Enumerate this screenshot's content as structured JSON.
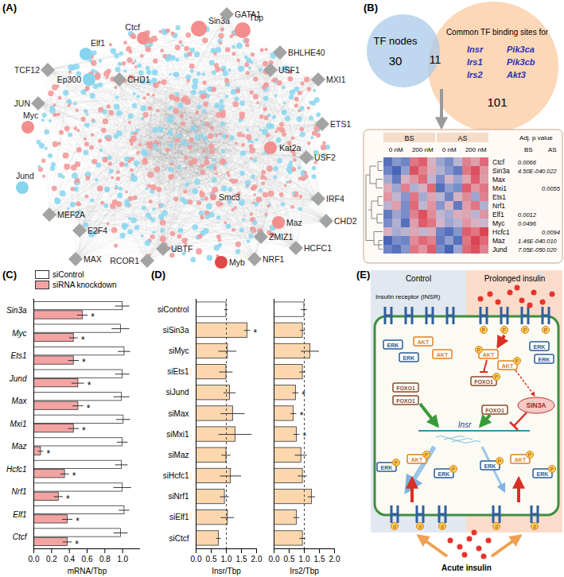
{
  "figure_labels": [
    "(A)",
    "(B)",
    "(C)",
    "(D)",
    "(E)"
  ],
  "panel_a": {
    "nodes": [
      {
        "label": "Sin3a",
        "shape": "circle",
        "color": "#f28e8e"
      },
      {
        "label": "Ctcf",
        "shape": "circle",
        "color": "#f28e8e"
      },
      {
        "label": "Tbp",
        "shape": "circle",
        "color": "#f28e8e"
      },
      {
        "label": "GATA1",
        "shape": "diamond",
        "color": "#a3a3a3"
      },
      {
        "label": "Elf1",
        "shape": "circle",
        "color": "#86d4ee"
      },
      {
        "label": "TCF12",
        "shape": "diamond",
        "color": "#a3a3a3"
      },
      {
        "label": "Ep300",
        "shape": "circle",
        "color": "#86d4ee"
      },
      {
        "label": "CHD1",
        "shape": "diamond",
        "color": "#a3a3a3"
      },
      {
        "label": "BHLHE40",
        "shape": "diamond",
        "color": "#a3a3a3"
      },
      {
        "label": "USF1",
        "shape": "diamond",
        "color": "#a3a3a3"
      },
      {
        "label": "MXI1",
        "shape": "diamond",
        "color": "#a3a3a3"
      },
      {
        "label": "JUN",
        "shape": "diamond",
        "color": "#a3a3a3"
      },
      {
        "label": "Myc",
        "shape": "circle",
        "color": "#f28e8e"
      },
      {
        "label": "ETS1",
        "shape": "diamond",
        "color": "#a3a3a3"
      },
      {
        "label": "USF2",
        "shape": "diamond",
        "color": "#a3a3a3"
      },
      {
        "label": "Kat2a",
        "shape": "circle",
        "color": "#f28e8e"
      },
      {
        "label": "Jund",
        "shape": "circle",
        "color": "#86d4ee"
      },
      {
        "label": "IRF4",
        "shape": "diamond",
        "color": "#a3a3a3"
      },
      {
        "label": "CHD2",
        "shape": "diamond",
        "color": "#a3a3a3"
      },
      {
        "label": "MEF2A",
        "shape": "diamond",
        "color": "#a3a3a3"
      },
      {
        "label": "E2F4",
        "shape": "diamond",
        "color": "#a3a3a3"
      },
      {
        "label": "Maz",
        "shape": "circle",
        "color": "#f28e8e"
      },
      {
        "label": "ZMIZ1",
        "shape": "diamond",
        "color": "#a3a3a3"
      },
      {
        "label": "MAX",
        "shape": "diamond",
        "color": "#a3a3a3"
      },
      {
        "label": "UBTF",
        "shape": "diamond",
        "color": "#a3a3a3"
      },
      {
        "label": "RCOR1",
        "shape": "diamond",
        "color": "#a3a3a3"
      },
      {
        "label": "Smc3",
        "shape": "circle",
        "color": "#f28e8e"
      },
      {
        "label": "NRF1",
        "shape": "diamond",
        "color": "#a3a3a3"
      },
      {
        "label": "HCFC1",
        "shape": "diamond",
        "color": "#a3a3a3"
      },
      {
        "label": "Myb",
        "shape": "circle",
        "color": "#e04848"
      }
    ]
  },
  "panel_b": {
    "venn": {
      "left_label": "TF nodes",
      "left_only": 30,
      "overlap": 11,
      "right_label": "Common TF binding sites for",
      "right_genes": [
        "Insr",
        "Pik3ca",
        "Irs1",
        "Pik3cb",
        "Irs2",
        "Akt3"
      ],
      "right_only": 101
    },
    "heatmap": {
      "groups": [
        "BS",
        "AS"
      ],
      "doses": [
        "0 nM",
        "200 nM"
      ],
      "rows": [
        "Ctcf",
        "Sin3a",
        "Max",
        "Mxi1",
        "Ets1",
        "Nrf1",
        "Elf1",
        "Myc",
        "Hcfc1",
        "Maz",
        "Jund"
      ],
      "zlim": [
        -1.5,
        1.5
      ],
      "cells": [
        [
          -1.2,
          -0.8,
          -1.0,
          0.9,
          1.1,
          0.2,
          -0.6,
          -0.9,
          -0.3,
          0.8,
          0.5,
          1.0
        ],
        [
          -1.0,
          -1.3,
          -0.7,
          1.2,
          0.8,
          0.3,
          -0.4,
          -0.8,
          -1.1,
          0.9,
          1.2,
          0.6
        ],
        [
          -0.5,
          -1.1,
          0.2,
          0.6,
          1.0,
          -0.2,
          -0.9,
          0.1,
          -0.6,
          0.4,
          1.1,
          0.5
        ],
        [
          0.3,
          -0.6,
          0.8,
          -0.4,
          0.2,
          1.0,
          -1.2,
          -0.7,
          -0.9,
          1.1,
          0.6,
          0.9
        ],
        [
          0.6,
          -0.2,
          -0.8,
          0.9,
          -0.5,
          0.4,
          -0.3,
          -1.0,
          0.2,
          0.7,
          -0.6,
          0.8
        ],
        [
          -0.3,
          0.5,
          -0.9,
          1.0,
          -0.2,
          0.6,
          -0.8,
          0.2,
          -1.1,
          0.5,
          0.9,
          -0.4
        ],
        [
          -1.1,
          -0.6,
          -0.9,
          0.8,
          1.2,
          0.7,
          -0.2,
          -0.5,
          0.3,
          0.4,
          -0.3,
          0.6
        ],
        [
          -0.9,
          -0.4,
          -1.2,
          0.5,
          1.1,
          0.9,
          0.1,
          -0.6,
          -0.3,
          0.6,
          0.2,
          -0.1
        ],
        [
          0.2,
          -0.5,
          -0.3,
          0.4,
          -0.2,
          0.3,
          -1.0,
          -1.2,
          -0.8,
          1.1,
          0.9,
          1.3
        ],
        [
          -1.3,
          -0.9,
          -1.0,
          0.7,
          1.0,
          0.8,
          -1.1,
          -0.7,
          -1.2,
          0.9,
          1.3,
          1.0
        ],
        [
          -1.0,
          -1.2,
          -0.8,
          0.9,
          0.6,
          1.1,
          -0.9,
          -1.3,
          -0.6,
          1.0,
          1.2,
          0.8
        ]
      ],
      "p_header": "Adj. p value",
      "p_columns": [
        "BS",
        "AS"
      ],
      "p_values": [
        [
          "0.0066",
          null
        ],
        [
          "4.50E-04",
          "0.022"
        ],
        [
          null,
          null
        ],
        [
          null,
          "0.0055"
        ],
        [
          null,
          null
        ],
        [
          null,
          null
        ],
        [
          "0.0012",
          null
        ],
        [
          "0.0496",
          null
        ],
        [
          null,
          "0.0094"
        ],
        [
          "1.46E-04",
          "0.010"
        ],
        [
          "7.05E-05",
          "0.020"
        ]
      ]
    }
  },
  "panel_e": {
    "left_title": "Control",
    "right_title": "Prolonged insulin",
    "receptor_label": "Insulin receptor (INSR)",
    "erk": "ERK",
    "akt": "AKT",
    "foxo": "FOXO1",
    "gene": "Insr",
    "repressor": "SIN3A",
    "bottom_label": "Acute insulin",
    "phospho": "P",
    "mark_d": "d"
  },
  "chart_data": [
    {
      "type": "bar",
      "orientation": "horizontal",
      "legend": "top",
      "categories": [
        "Sin3a",
        "Myc",
        "Ets1",
        "Jund",
        "Max",
        "Mxi1",
        "Maz",
        "Hcfc1",
        "Nrf1",
        "Elf1",
        "Ctcf"
      ],
      "series": [
        {
          "name": "siControl",
          "color": "#ffffff",
          "values": [
            1.0,
            0.98,
            1.02,
            1.0,
            0.99,
            1.01,
            1.0,
            0.99,
            1.0,
            1.02,
            0.98
          ],
          "errors": [
            0.08,
            0.1,
            0.07,
            0.08,
            0.09,
            0.08,
            0.06,
            0.07,
            0.1,
            0.06,
            0.08
          ]
        },
        {
          "name": "siRNA knockdown",
          "color": "#f4a3a3",
          "values": [
            0.55,
            0.45,
            0.45,
            0.5,
            0.5,
            0.45,
            0.08,
            0.35,
            0.28,
            0.38,
            0.38
          ],
          "errors": [
            0.06,
            0.05,
            0.06,
            0.07,
            0.06,
            0.06,
            0.03,
            0.05,
            0.05,
            0.06,
            0.05
          ],
          "annotations": [
            "*",
            "*",
            "*",
            "*",
            "*",
            "*",
            "*",
            "*",
            "*",
            "*",
            "*"
          ]
        }
      ],
      "xlabel": "mRNA/Tbp",
      "xlim": [
        0,
        1.2
      ],
      "xticks": [
        {
          "value": 0,
          "label": "0.0"
        },
        {
          "value": 0.2,
          "label": "0.2"
        },
        {
          "value": 0.4,
          "label": "0.4"
        },
        {
          "value": 0.6,
          "label": "0.6"
        },
        {
          "value": 0.8,
          "label": "0.8"
        },
        {
          "value": 1,
          "label": "1.0"
        }
      ]
    },
    {
      "type": "bar",
      "orientation": "horizontal",
      "categories": [
        "siControl",
        "siSin3a",
        "siMyc",
        "siEts1",
        "siJund",
        "siMax",
        "siMxi1",
        "siMaz",
        "siHcfc1",
        "siNrf1",
        "siElf1",
        "siCtcf"
      ],
      "values": [
        1.0,
        1.7,
        1.05,
        1.0,
        1.12,
        1.22,
        1.3,
        1.0,
        1.15,
        0.95,
        1.05,
        0.75
      ],
      "errors": [
        0.06,
        0.1,
        0.3,
        0.22,
        0.2,
        0.4,
        0.55,
        0.15,
        0.35,
        0.15,
        0.22,
        0.08
      ],
      "colors": [
        "#ffffff",
        "#fcd7ad",
        "#fcd7ad",
        "#fcd7ad",
        "#fcd7ad",
        "#fcd7ad",
        "#fcd7ad",
        "#fcd7ad",
        "#fcd7ad",
        "#fcd7ad",
        "#fcd7ad",
        "#fcd7ad"
      ],
      "annotations": [
        null,
        "*",
        null,
        null,
        null,
        null,
        null,
        null,
        null,
        null,
        null,
        null
      ],
      "rule": 1,
      "xlabel": "Insr/Tbp",
      "xlim": [
        0,
        2
      ],
      "xticks": [
        {
          "value": 0,
          "label": "0.0"
        },
        {
          "value": 0.5,
          "label": "0.5"
        },
        {
          "value": 1,
          "label": "1.0"
        },
        {
          "value": 1.5,
          "label": "1.5"
        },
        {
          "value": 2,
          "label": "2.0"
        }
      ]
    },
    {
      "type": "bar",
      "orientation": "horizontal",
      "tick_labels": "x",
      "categories": [
        "siControl",
        "siSin3a",
        "siMyc",
        "siEts1",
        "siJund",
        "siMax",
        "siMxi1",
        "siMaz",
        "siHcfc1",
        "siNrf1",
        "siElf1",
        "siCtcf"
      ],
      "values": [
        1.0,
        0.95,
        1.2,
        0.95,
        0.72,
        0.65,
        0.75,
        0.9,
        0.95,
        1.25,
        0.75,
        0.95
      ],
      "errors": [
        0.1,
        0.08,
        0.3,
        0.1,
        0.1,
        0.1,
        0.1,
        0.2,
        0.15,
        0.12,
        0.1,
        0.1
      ],
      "colors": [
        "#ffffff",
        "#fcd7ad",
        "#fcd7ad",
        "#fcd7ad",
        "#fcd7ad",
        "#fcd7ad",
        "#fcd7ad",
        "#fcd7ad",
        "#fcd7ad",
        "#fcd7ad",
        "#fcd7ad",
        "#fcd7ad"
      ],
      "annotations": [
        null,
        null,
        null,
        null,
        "*",
        "*",
        "*",
        null,
        null,
        null,
        null,
        null
      ],
      "rule": 1,
      "xlabel": "Irs2/Tbp",
      "xlim": [
        0,
        2
      ],
      "xticks": [
        {
          "value": 0,
          "label": "0.0"
        },
        {
          "value": 0.5,
          "label": "0.5"
        },
        {
          "value": 1,
          "label": "1.0"
        },
        {
          "value": 1.5,
          "label": "1.5"
        },
        {
          "value": 2,
          "label": "2.0"
        }
      ]
    }
  ]
}
